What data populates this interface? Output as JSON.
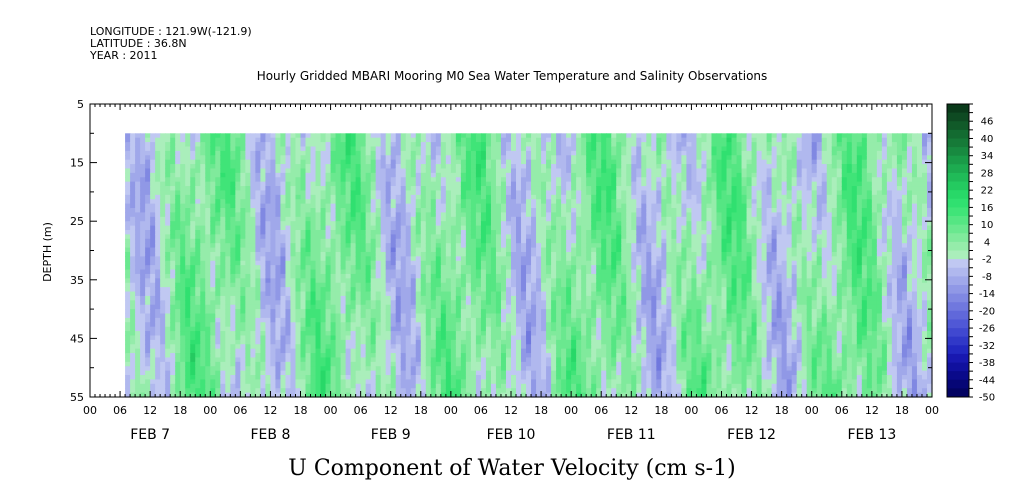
{
  "header": {
    "longitude": "LONGITUDE : 121.9W(-121.9)",
    "latitude": "LATITUDE : 36.8N",
    "year": "YEAR : 2011"
  },
  "chart_data": {
    "type": "heatmap",
    "title": "Hourly Gridded MBARI Mooring M0 Sea Water Temperature and Salinity Observations",
    "xlabel": "",
    "ylabel": "DEPTH (m)",
    "variable_label": "U Component of Water Velocity (cm s-1)",
    "y_ticks": [
      "5",
      "15",
      "25",
      "35",
      "45",
      "55"
    ],
    "y_range_m": [
      5,
      55
    ],
    "x_range_hours": [
      0,
      168
    ],
    "x_hour_ticks": [
      "00",
      "06",
      "12",
      "18",
      "00",
      "06",
      "12",
      "18",
      "00",
      "06",
      "12",
      "18",
      "00",
      "06",
      "12",
      "18",
      "00",
      "06",
      "12",
      "18",
      "00",
      "06",
      "12",
      "18",
      "00",
      "06",
      "12",
      "18",
      "00"
    ],
    "x_day_labels": [
      "FEB  7",
      "FEB  8",
      "FEB  9",
      "FEB 10",
      "FEB 11",
      "FEB 12",
      "FEB 13"
    ],
    "data_depth_range_m": [
      10,
      55
    ],
    "data_start_hour": 7,
    "colorbar_labels": [
      "46",
      "40",
      "34",
      "28",
      "22",
      "16",
      "10",
      "4",
      "-2",
      "-8",
      "-14",
      "-20",
      "-26",
      "-32",
      "-38",
      "-44",
      "-50"
    ],
    "colorbar_levels": [
      52,
      49,
      46,
      43,
      40,
      37,
      34,
      31,
      28,
      25,
      22,
      19,
      16,
      13,
      10,
      7,
      4,
      1,
      -2,
      -5,
      -8,
      -11,
      -14,
      -17,
      -20,
      -23,
      -26,
      -29,
      -32,
      -35,
      -38,
      -41,
      -44,
      -47,
      -50
    ],
    "colorbar_colors": [
      "#0a3a1a",
      "#0e4a22",
      "#115a29",
      "#136b31",
      "#167a38",
      "#188a40",
      "#1a9b48",
      "#1dab50",
      "#20bb58",
      "#24ca60",
      "#28d868",
      "#30e070",
      "#40e478",
      "#55e683",
      "#6ae88f",
      "#80ea9c",
      "#95ecaa",
      "#aaeebb",
      "#c0c8f2",
      "#b0b8ee",
      "#a0a8ea",
      "#9098e6",
      "#8088e2",
      "#7078de",
      "#6068da",
      "#5058d6",
      "#4048d0",
      "#3038c8",
      "#2228c0",
      "#1818b0",
      "#10109e",
      "#0a0a8a",
      "#060676",
      "#030362"
    ],
    "sample_columns": [
      {
        "hour": 8,
        "u_profile": [
          -12,
          -12,
          -12,
          -12,
          -14,
          -14,
          -14,
          -14,
          -14,
          -14
        ]
      },
      {
        "hour": 33,
        "u_profile": [
          16,
          16,
          16,
          14,
          14,
          14,
          10,
          8,
          6,
          4
        ]
      },
      {
        "hour": 60,
        "u_profile": [
          -8,
          -6,
          0,
          6,
          14,
          18,
          16,
          14,
          10,
          8
        ]
      },
      {
        "hour": 100,
        "u_profile": [
          14,
          16,
          16,
          14,
          16,
          16,
          16,
          18,
          16,
          14
        ]
      },
      {
        "hour": 140,
        "u_profile": [
          -8,
          -8,
          -2,
          2,
          6,
          8,
          10,
          8,
          4,
          0
        ]
      }
    ]
  }
}
